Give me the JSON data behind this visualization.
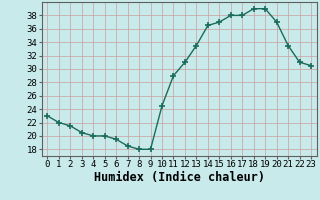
{
  "x": [
    0,
    1,
    2,
    3,
    4,
    5,
    6,
    7,
    8,
    9,
    10,
    11,
    12,
    13,
    14,
    15,
    16,
    17,
    18,
    19,
    20,
    21,
    22,
    23
  ],
  "y": [
    23,
    22,
    21.5,
    20.5,
    20,
    20,
    19.5,
    18.5,
    18,
    18,
    24.5,
    29,
    31,
    33.5,
    36.5,
    37,
    38,
    38,
    39,
    39,
    37,
    33.5,
    31,
    30.5
  ],
  "line_color": "#1a6b5a",
  "marker_color": "#1a6b5a",
  "bg_color": "#c8eaea",
  "grid_color": "#b0d8d8",
  "xlabel": "Humidex (Indice chaleur)",
  "ylabel_ticks": [
    18,
    20,
    22,
    24,
    26,
    28,
    30,
    32,
    34,
    36,
    38
  ],
  "ylim": [
    17.0,
    40.0
  ],
  "xlim": [
    -0.5,
    23.5
  ],
  "tick_fontsize": 6.5,
  "xlabel_fontsize": 8.5
}
